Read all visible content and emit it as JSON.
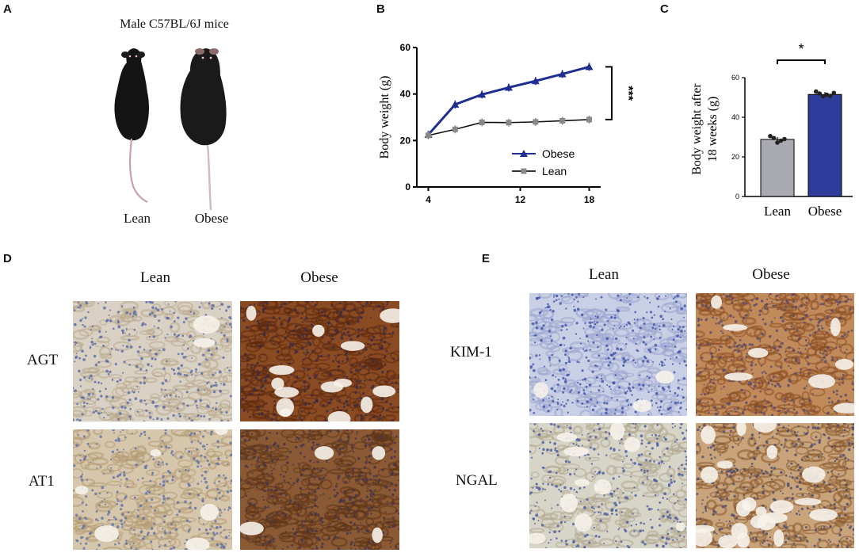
{
  "panels": {
    "a": "A",
    "b": "B",
    "c": "C",
    "d": "D",
    "e": "E"
  },
  "panel_a": {
    "title": "Male C57BL/6J mice",
    "lean_label": "Lean",
    "obese_label": "Obese"
  },
  "chart_data": [
    {
      "type": "line",
      "ylabel": "Body weight (g)",
      "xlabel": "",
      "x": [
        4,
        6,
        8,
        10,
        12,
        14,
        16,
        18
      ],
      "xticks": [
        4,
        12,
        18
      ],
      "yticks": [
        0,
        20,
        40,
        60
      ],
      "ylim": [
        0,
        60
      ],
      "xlim": [
        3,
        19
      ],
      "series": [
        {
          "name": "Obese",
          "color": "#1f2f8f",
          "marker": "triangle",
          "values": [
            22.5,
            35.5,
            39.8,
            42.8,
            45.6,
            48.6,
            51.7
          ],
          "x": [
            4,
            6,
            8,
            10,
            12,
            14,
            16
          ]
        },
        {
          "name": "Lean",
          "color": "#888888",
          "marker": "square",
          "values": [
            22.2,
            24.8,
            27.8,
            27.7,
            28.0,
            28.5,
            29.0
          ],
          "x": [
            4,
            6,
            8,
            10,
            12,
            14,
            16
          ]
        }
      ],
      "significance": "***",
      "legend_position": "bottom-right"
    },
    {
      "type": "bar",
      "ylabel": "Body weight after 18 weeks (g)",
      "ylabel_line1": "Body weight after",
      "ylabel_line2": "18 weeks (g)",
      "categories": [
        "Lean",
        "Obese"
      ],
      "values": [
        28.8,
        51.5
      ],
      "colors": [
        "#a9a9b2",
        "#2e3d9c"
      ],
      "points": [
        [
          30.5,
          29.5,
          27.2,
          28.2,
          29.0
        ],
        [
          53.0,
          52.0,
          50.6,
          51.4,
          50.8,
          52.3
        ]
      ],
      "yticks": [
        0,
        20,
        40,
        60
      ],
      "ylim": [
        0,
        60
      ],
      "significance": "*"
    }
  ],
  "panel_d": {
    "col_lean": "Lean",
    "col_obese": "Obese",
    "row1": "AGT",
    "row2": "AT1"
  },
  "panel_e": {
    "col_lean": "Lean",
    "col_obese": "Obese",
    "row1": "KIM-1",
    "row2": "NGAL"
  }
}
